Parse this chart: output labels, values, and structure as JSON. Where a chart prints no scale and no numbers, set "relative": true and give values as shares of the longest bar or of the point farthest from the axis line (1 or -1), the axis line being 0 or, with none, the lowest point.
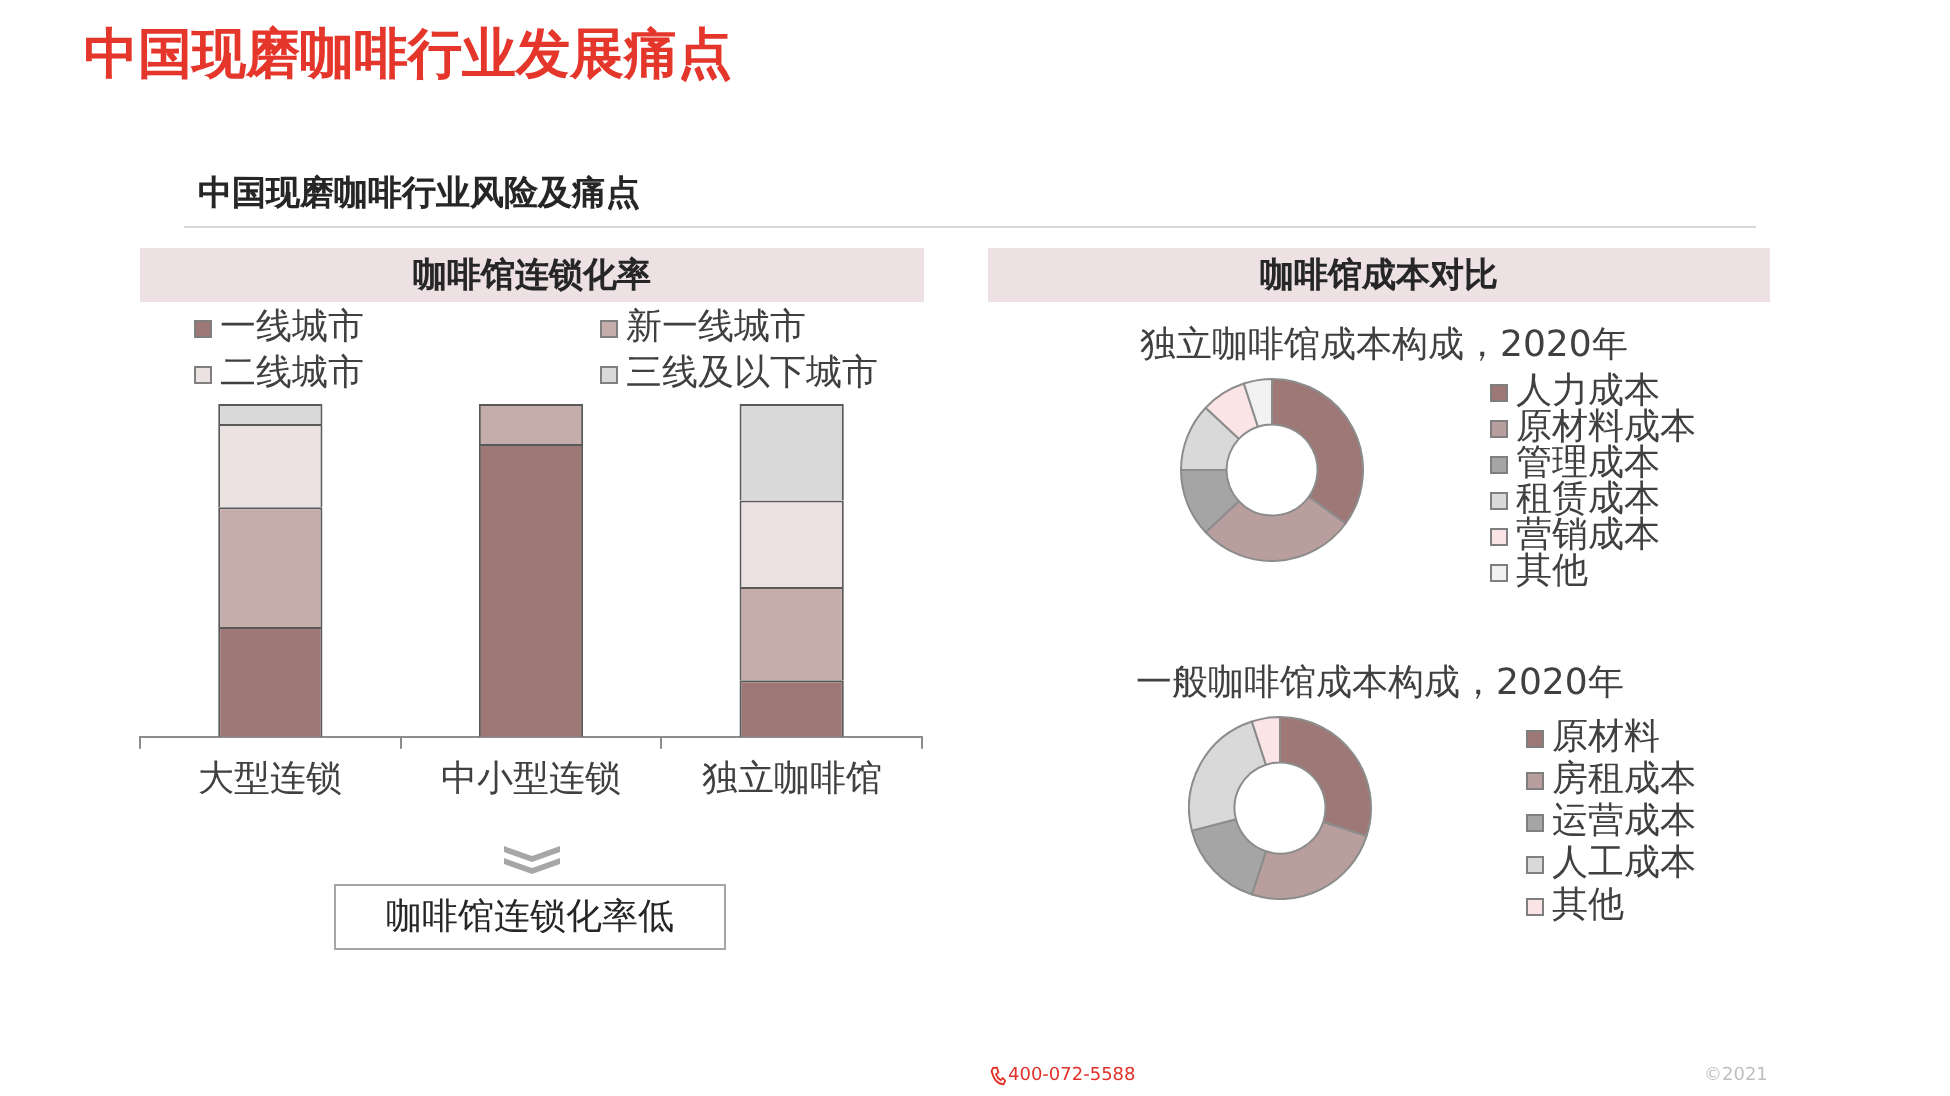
{
  "chart_data": [
    {
      "type": "other",
      "title": "中国现磨咖啡行业发展痛点",
      "subtitle": "中国现磨咖啡行业风险及痛点",
      "annotations": [
        "400-072-5588",
        "©2021"
      ]
    },
    {
      "type": "bar",
      "title": "咖啡馆连锁化率",
      "categories": [
        "大型连锁",
        "中小型连锁",
        "独立咖啡馆"
      ],
      "series": [
        {
          "name": "一线城市",
          "color": "#9e7876",
          "values": [
            0.33,
            0.88,
            0.17
          ]
        },
        {
          "name": "新一线城市",
          "color": "#c4adab",
          "values": [
            0.36,
            0.12,
            0.28
          ]
        },
        {
          "name": "二线城市",
          "color": "#ede2e2",
          "values": [
            0.25,
            0,
            0.26
          ]
        },
        {
          "name": "三线及以下城市",
          "color": "#d9d9d9",
          "values": [
            0.06,
            0,
            0.29
          ]
        }
      ],
      "stacked": true,
      "relative": true,
      "legend": "top",
      "annotations": [
        "咖啡馆连锁化率低"
      ]
    },
    {
      "type": "donut",
      "title": "咖啡馆成本对比",
      "subtitle": "独立咖啡馆成本构成，2020年",
      "categories": [
        "人力成本",
        "原材料成本",
        "管理成本",
        "租赁成本",
        "营销成本",
        "其他"
      ],
      "values": [
        35,
        28,
        12,
        12,
        8,
        5
      ],
      "colors": [
        "#9e7876",
        "#b89e9d",
        "#a5a5a5",
        "#d9d9d9",
        "#fae4e6",
        "#f2f2f2"
      ],
      "legend": "right"
    },
    {
      "type": "donut",
      "title": "一般咖啡馆成本构成，2020年",
      "categories": [
        "原材料",
        "房租成本",
        "运营成本",
        "人工成本",
        "其他"
      ],
      "values": [
        30,
        25,
        16,
        24,
        5
      ],
      "colors": [
        "#9e7876",
        "#b89e9d",
        "#a5a5a5",
        "#d9d9d9",
        "#fae4e6"
      ],
      "legend": "right"
    }
  ]
}
